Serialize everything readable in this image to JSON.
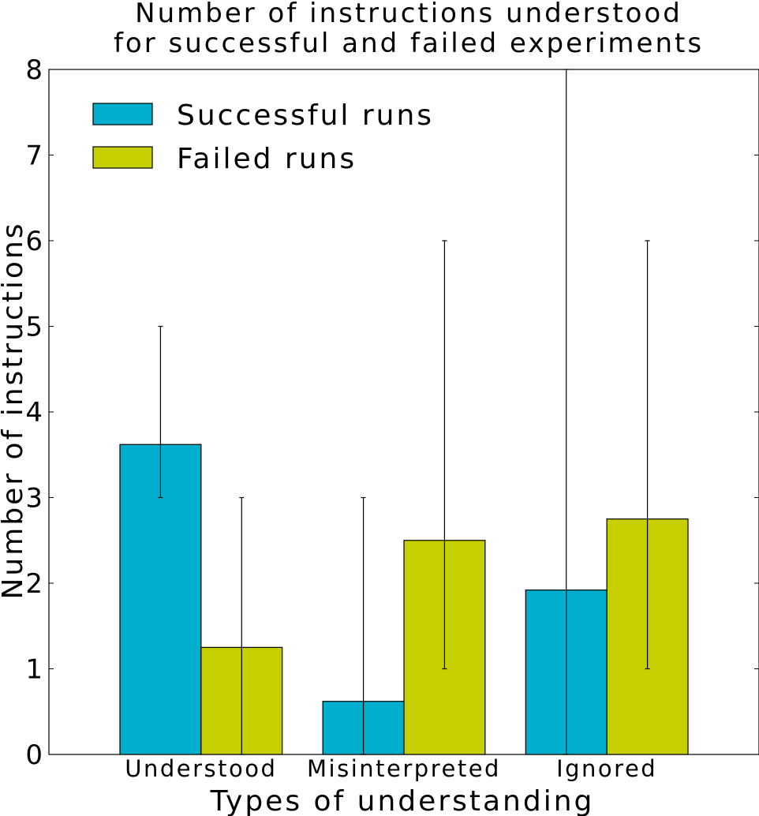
{
  "chart_data": {
    "type": "bar",
    "title": [
      "Number of instructions understood",
      "for successful and failed experiments"
    ],
    "xlabel": "Types of understanding",
    "ylabel": "Number of instructions",
    "categories": [
      "Understood",
      "Misinterpreted",
      "Ignored"
    ],
    "ylim": [
      0,
      8
    ],
    "yticks": [
      "0",
      "1",
      "2",
      "3",
      "4",
      "5",
      "6",
      "7",
      "8"
    ],
    "legend_position": "top-left",
    "grid": false,
    "series": [
      {
        "name": "Successful runs",
        "color": "#00aecd",
        "values": [
          3.62,
          0.62,
          1.92
        ],
        "error_low": [
          3,
          0,
          0
        ],
        "error_high": [
          5,
          3,
          8
        ]
      },
      {
        "name": "Failed runs",
        "color": "#c6cf00",
        "values": [
          1.25,
          2.5,
          2.75
        ],
        "error_low": [
          0,
          1,
          1
        ],
        "error_high": [
          3,
          6,
          6
        ]
      }
    ]
  }
}
